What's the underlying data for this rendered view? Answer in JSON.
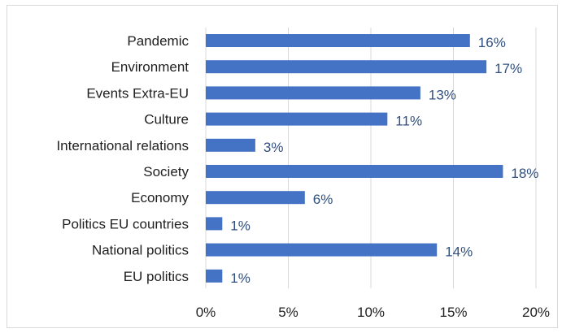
{
  "chart_data": {
    "type": "bar",
    "orientation": "horizontal",
    "categories": [
      "Pandemic",
      "Environment",
      "Events Extra-EU",
      "Culture",
      "International relations",
      "Society",
      "Economy",
      "Politics EU countries",
      "National politics",
      "EU politics"
    ],
    "values": [
      16,
      17,
      13,
      11,
      3,
      18,
      6,
      1,
      14,
      1
    ],
    "value_labels": [
      "16%",
      "17%",
      "13%",
      "11%",
      "3%",
      "18%",
      "6%",
      "1%",
      "14%",
      "1%"
    ],
    "xticks": [
      "0%",
      "5%",
      "10%",
      "15%",
      "20%"
    ],
    "xlim": [
      0,
      20
    ],
    "grid": "vertical",
    "bar_color": "#4472c4",
    "gridline_color": "#d9d9d9",
    "text_color": "#1f1f1f",
    "label_color": "#2f4f7f"
  }
}
